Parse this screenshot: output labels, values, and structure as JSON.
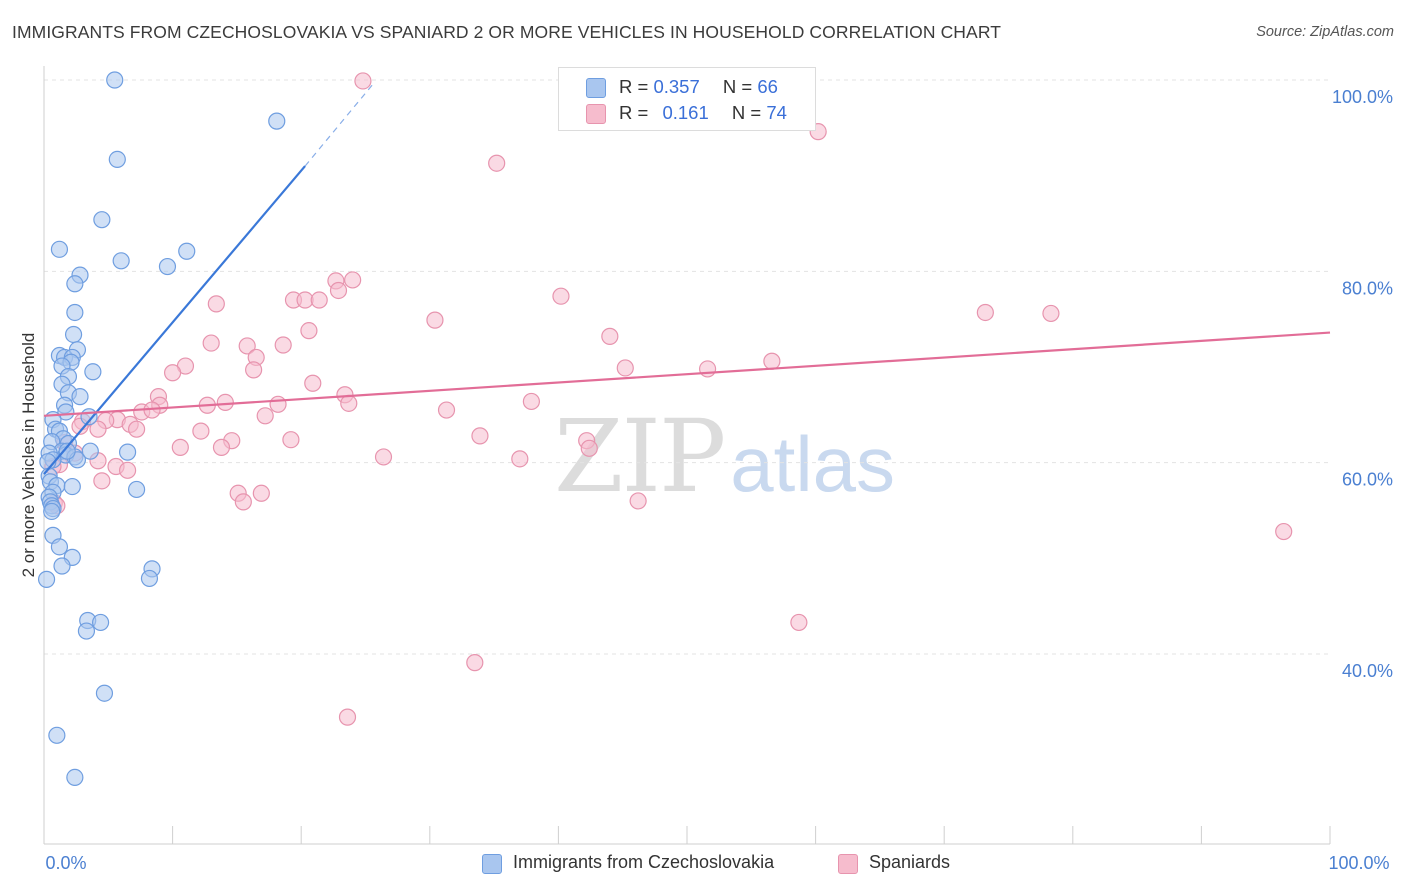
{
  "header": {
    "title": "IMMIGRANTS FROM CZECHOSLOVAKIA VS SPANIARD 2 OR MORE VEHICLES IN HOUSEHOLD CORRELATION CHART",
    "source": "Source: ZipAtlas.com"
  },
  "watermark": {
    "zip": "ZIP",
    "atlas": "atlas"
  },
  "legend_top": {
    "rows": [
      {
        "r_label": "R = ",
        "r_value": "0.357",
        "n_label": "N = ",
        "n_value": "66"
      },
      {
        "r_label": "R = ",
        "r_value": "0.161",
        "n_label": "N = ",
        "n_value": "74"
      }
    ]
  },
  "legend_bottom": {
    "items": [
      {
        "label": "Immigrants from Czechoslovakia"
      },
      {
        "label": "Spaniards"
      }
    ]
  },
  "colors": {
    "blue_fill": "#a9c6ef",
    "blue_stroke": "#6f9ee0",
    "blue_line": "#3a78d8",
    "pink_fill": "#f6bccd",
    "pink_stroke": "#e794ae",
    "pink_line": "#e26d97",
    "grid": "#e3e3e3",
    "tick_text": "#4a7fd1"
  },
  "chart_data": {
    "type": "scatter",
    "title": "IMMIGRANTS FROM CZECHOSLOVAKIA VS SPANIARD 2 OR MORE VEHICLES IN HOUSEHOLD CORRELATION CHART",
    "xlabel": "",
    "ylabel": "2 or more Vehicles in Household",
    "xlim": [
      0,
      100
    ],
    "ylim": [
      20,
      102
    ],
    "x_tick_labels": [
      "0.0%",
      "100.0%"
    ],
    "y_ticks": [
      40,
      60,
      80,
      100
    ],
    "y_tick_labels": [
      "40.0%",
      "60.0%",
      "80.0%",
      "100.0%"
    ],
    "grid": true,
    "legend_position": "top-center",
    "series": [
      {
        "name": "Immigrants from Czechoslovakia",
        "color": "#a9c6ef",
        "R": 0.357,
        "N": 66,
        "trend": {
          "x": [
            0.0,
            20.3
          ],
          "y": [
            58.8,
            91.0
          ],
          "dashed_to": [
            25.6,
            99.6
          ]
        },
        "points": [
          [
            5.5,
            100.0
          ],
          [
            18.1,
            95.7
          ],
          [
            5.7,
            91.7
          ],
          [
            4.5,
            85.4
          ],
          [
            1.2,
            82.3
          ],
          [
            11.1,
            82.1
          ],
          [
            6.0,
            81.1
          ],
          [
            9.6,
            80.5
          ],
          [
            2.8,
            79.6
          ],
          [
            2.4,
            78.7
          ],
          [
            2.4,
            75.7
          ],
          [
            2.3,
            73.4
          ],
          [
            2.6,
            71.8
          ],
          [
            1.2,
            71.2
          ],
          [
            1.6,
            71.0
          ],
          [
            2.2,
            71.0
          ],
          [
            2.1,
            70.5
          ],
          [
            1.4,
            70.1
          ],
          [
            3.8,
            69.5
          ],
          [
            1.9,
            69.0
          ],
          [
            1.4,
            68.2
          ],
          [
            1.9,
            67.3
          ],
          [
            2.8,
            66.9
          ],
          [
            1.6,
            66.0
          ],
          [
            1.7,
            65.3
          ],
          [
            3.5,
            64.8
          ],
          [
            0.7,
            64.5
          ],
          [
            0.9,
            63.5
          ],
          [
            1.2,
            63.3
          ],
          [
            1.5,
            62.5
          ],
          [
            0.6,
            62.2
          ],
          [
            1.9,
            62.0
          ],
          [
            1.4,
            61.2
          ],
          [
            0.4,
            61.0
          ],
          [
            1.7,
            60.8
          ],
          [
            2.4,
            60.6
          ],
          [
            2.6,
            60.3
          ],
          [
            0.7,
            60.3
          ],
          [
            0.3,
            60.1
          ],
          [
            1.8,
            61.2
          ],
          [
            3.6,
            61.2
          ],
          [
            6.5,
            61.1
          ],
          [
            0.4,
            58.6
          ],
          [
            0.5,
            58.0
          ],
          [
            1.0,
            57.6
          ],
          [
            2.2,
            57.5
          ],
          [
            7.2,
            57.2
          ],
          [
            0.7,
            56.9
          ],
          [
            0.4,
            56.4
          ],
          [
            0.5,
            55.9
          ],
          [
            0.6,
            55.5
          ],
          [
            0.7,
            55.2
          ],
          [
            0.6,
            54.9
          ],
          [
            0.7,
            52.4
          ],
          [
            1.2,
            51.2
          ],
          [
            2.2,
            50.1
          ],
          [
            1.4,
            49.2
          ],
          [
            8.4,
            48.9
          ],
          [
            8.2,
            47.9
          ],
          [
            0.2,
            47.8
          ],
          [
            3.4,
            43.5
          ],
          [
            4.4,
            43.3
          ],
          [
            3.3,
            42.4
          ],
          [
            4.7,
            35.9
          ],
          [
            1.0,
            31.5
          ],
          [
            2.4,
            27.1
          ]
        ]
      },
      {
        "name": "Spaniards",
        "color": "#f6bccd",
        "R": 0.161,
        "N": 74,
        "trend": {
          "x": [
            0.0,
            100.0
          ],
          "y": [
            64.9,
            73.6
          ]
        },
        "points": [
          [
            24.8,
            99.9
          ],
          [
            60.2,
            94.6
          ],
          [
            35.2,
            91.3
          ],
          [
            24.0,
            79.1
          ],
          [
            22.7,
            79.0
          ],
          [
            22.9,
            78.0
          ],
          [
            40.2,
            77.4
          ],
          [
            19.4,
            77.0
          ],
          [
            20.3,
            77.0
          ],
          [
            21.4,
            77.0
          ],
          [
            13.4,
            76.6
          ],
          [
            73.2,
            75.7
          ],
          [
            78.3,
            75.6
          ],
          [
            30.4,
            74.9
          ],
          [
            20.6,
            73.8
          ],
          [
            44.0,
            73.2
          ],
          [
            13.0,
            72.5
          ],
          [
            15.8,
            72.2
          ],
          [
            18.6,
            72.3
          ],
          [
            16.5,
            71.0
          ],
          [
            56.6,
            70.6
          ],
          [
            11.0,
            70.1
          ],
          [
            45.2,
            69.9
          ],
          [
            51.6,
            69.8
          ],
          [
            16.3,
            69.7
          ],
          [
            10.0,
            69.4
          ],
          [
            20.9,
            68.3
          ],
          [
            23.4,
            67.1
          ],
          [
            8.9,
            66.9
          ],
          [
            18.2,
            66.1
          ],
          [
            9.0,
            66.0
          ],
          [
            12.7,
            66.0
          ],
          [
            14.1,
            66.3
          ],
          [
            23.7,
            66.2
          ],
          [
            37.9,
            66.4
          ],
          [
            31.3,
            65.5
          ],
          [
            7.6,
            65.3
          ],
          [
            8.4,
            65.5
          ],
          [
            17.2,
            64.9
          ],
          [
            5.7,
            64.5
          ],
          [
            3.0,
            64.3
          ],
          [
            4.8,
            64.4
          ],
          [
            6.7,
            64.0
          ],
          [
            7.2,
            63.5
          ],
          [
            12.2,
            63.3
          ],
          [
            33.9,
            62.8
          ],
          [
            14.6,
            62.3
          ],
          [
            19.2,
            62.4
          ],
          [
            42.2,
            62.3
          ],
          [
            4.2,
            63.5
          ],
          [
            2.8,
            63.8
          ],
          [
            10.6,
            61.6
          ],
          [
            13.8,
            61.6
          ],
          [
            42.4,
            61.5
          ],
          [
            1.6,
            62.1
          ],
          [
            2.4,
            61.0
          ],
          [
            26.4,
            60.6
          ],
          [
            37.0,
            60.4
          ],
          [
            4.2,
            60.2
          ],
          [
            5.6,
            59.6
          ],
          [
            6.5,
            59.2
          ],
          [
            1.2,
            59.8
          ],
          [
            0.7,
            59.6
          ],
          [
            4.5,
            58.1
          ],
          [
            15.1,
            56.8
          ],
          [
            16.9,
            56.8
          ],
          [
            15.5,
            55.9
          ],
          [
            46.2,
            56.0
          ],
          [
            0.8,
            55.8
          ],
          [
            96.4,
            52.8
          ],
          [
            58.7,
            43.3
          ],
          [
            33.5,
            39.1
          ],
          [
            23.6,
            33.4
          ],
          [
            1.0,
            55.5
          ]
        ]
      }
    ]
  }
}
